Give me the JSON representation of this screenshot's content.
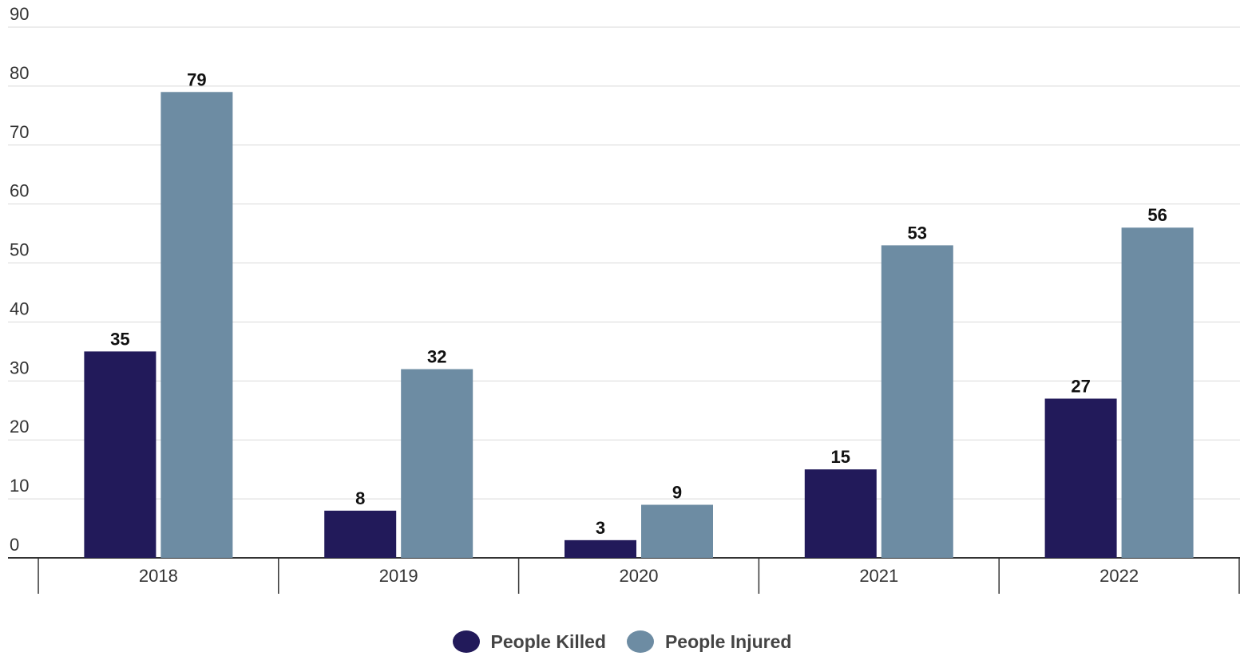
{
  "chart_data": {
    "type": "bar",
    "title": "",
    "xlabel": "",
    "ylabel": "",
    "categories": [
      "2018",
      "2019",
      "2020",
      "2021",
      "2022"
    ],
    "series": [
      {
        "name": "People Killed",
        "color": "#221a5a",
        "values": [
          35,
          8,
          3,
          15,
          27
        ]
      },
      {
        "name": "People Injured",
        "color": "#6d8ca3",
        "values": [
          79,
          32,
          9,
          53,
          56
        ]
      }
    ],
    "ylim": [
      0,
      90
    ],
    "yticks": [
      0,
      10,
      20,
      30,
      40,
      50,
      60,
      70,
      80,
      90
    ],
    "grid": true,
    "data_labels": true,
    "legend_position": "bottom-center"
  }
}
